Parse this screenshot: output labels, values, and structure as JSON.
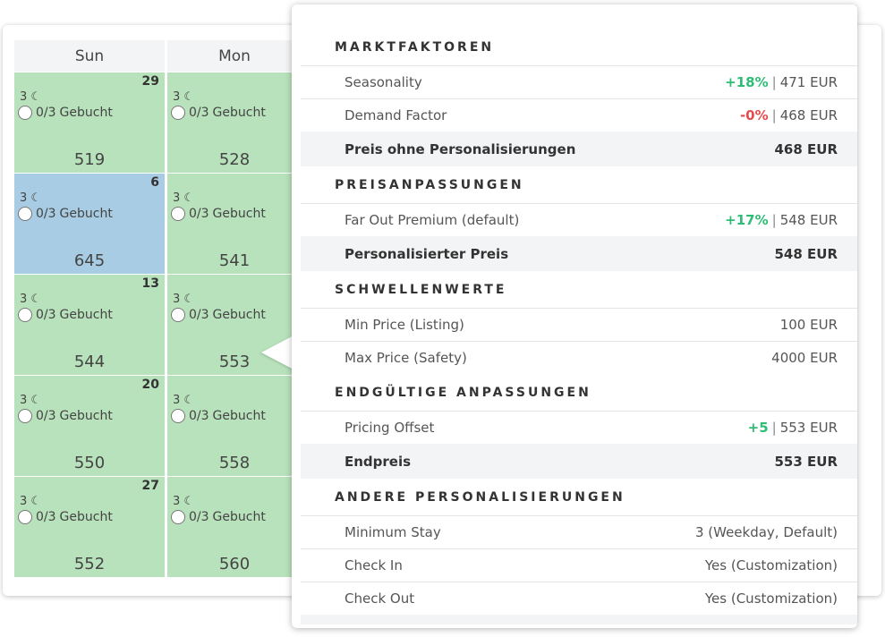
{
  "calendar": {
    "columns": [
      "Sun",
      "Mon"
    ],
    "booked_label": "Gebucht",
    "rows": [
      [
        {
          "day": "29",
          "nights": "3",
          "booked": "0/3",
          "price": "519",
          "color": "#b8e2bb"
        },
        {
          "day": "",
          "nights": "3",
          "booked": "0/3",
          "price": "528",
          "color": "#b8e2bb"
        }
      ],
      [
        {
          "day": "6",
          "nights": "3",
          "booked": "0/3",
          "price": "645",
          "color": "#a8cce3"
        },
        {
          "day": "",
          "nights": "3",
          "booked": "0/3",
          "price": "541",
          "color": "#b8e2bb"
        }
      ],
      [
        {
          "day": "13",
          "nights": "3",
          "booked": "0/3",
          "price": "544",
          "color": "#b8e2bb"
        },
        {
          "day": "",
          "nights": "3",
          "booked": "0/3",
          "price": "553",
          "color": "#b8e2bb"
        }
      ],
      [
        {
          "day": "20",
          "nights": "3",
          "booked": "0/3",
          "price": "550",
          "color": "#b8e2bb"
        },
        {
          "day": "",
          "nights": "3",
          "booked": "0/3",
          "price": "558",
          "color": "#b8e2bb"
        }
      ],
      [
        {
          "day": "27",
          "nights": "3",
          "booked": "0/3",
          "price": "552",
          "color": "#b8e2bb"
        },
        {
          "day": "",
          "nights": "3",
          "booked": "0/3",
          "price": "560",
          "color": "#b8e2bb"
        }
      ]
    ]
  },
  "breakdown": [
    {
      "title": "MARKTFAKTOREN",
      "rows": [
        {
          "label": "Seasonality",
          "change": "+18%",
          "trend": "pos",
          "value": "471 EUR"
        },
        {
          "label": "Demand Factor",
          "change": "-0%",
          "trend": "neg",
          "value": "468 EUR"
        },
        {
          "label": "Preis ohne Personalisierungen",
          "value": "468 EUR",
          "total": true
        }
      ]
    },
    {
      "title": "PREISANPASSUNGEN",
      "rows": [
        {
          "label": "Far Out Premium (default)",
          "change": "+17%",
          "trend": "pos",
          "value": "548 EUR"
        },
        {
          "label": "Personalisierter Preis",
          "value": "548 EUR",
          "total": true
        }
      ]
    },
    {
      "title": "SCHWELLENWERTE",
      "rows": [
        {
          "label": "Min Price (Listing)",
          "value": "100 EUR"
        },
        {
          "label": "Max Price (Safety)",
          "value": "4000 EUR"
        }
      ]
    },
    {
      "title": "ENDGÜLTIGE ANPASSUNGEN",
      "rows": [
        {
          "label": "Pricing Offset",
          "change": "+5",
          "trend": "pos",
          "value": "553 EUR"
        },
        {
          "label": "Endpreis",
          "value": "553 EUR",
          "total": true
        }
      ]
    },
    {
      "title": "ANDERE PERSONALISIERUNGEN",
      "rows": [
        {
          "label": "Minimum Stay",
          "value": "3 (Weekday, Default)"
        },
        {
          "label": "Check In",
          "value": "Yes (Customization)"
        },
        {
          "label": "Check Out",
          "value": "Yes (Customization)"
        }
      ]
    }
  ]
}
